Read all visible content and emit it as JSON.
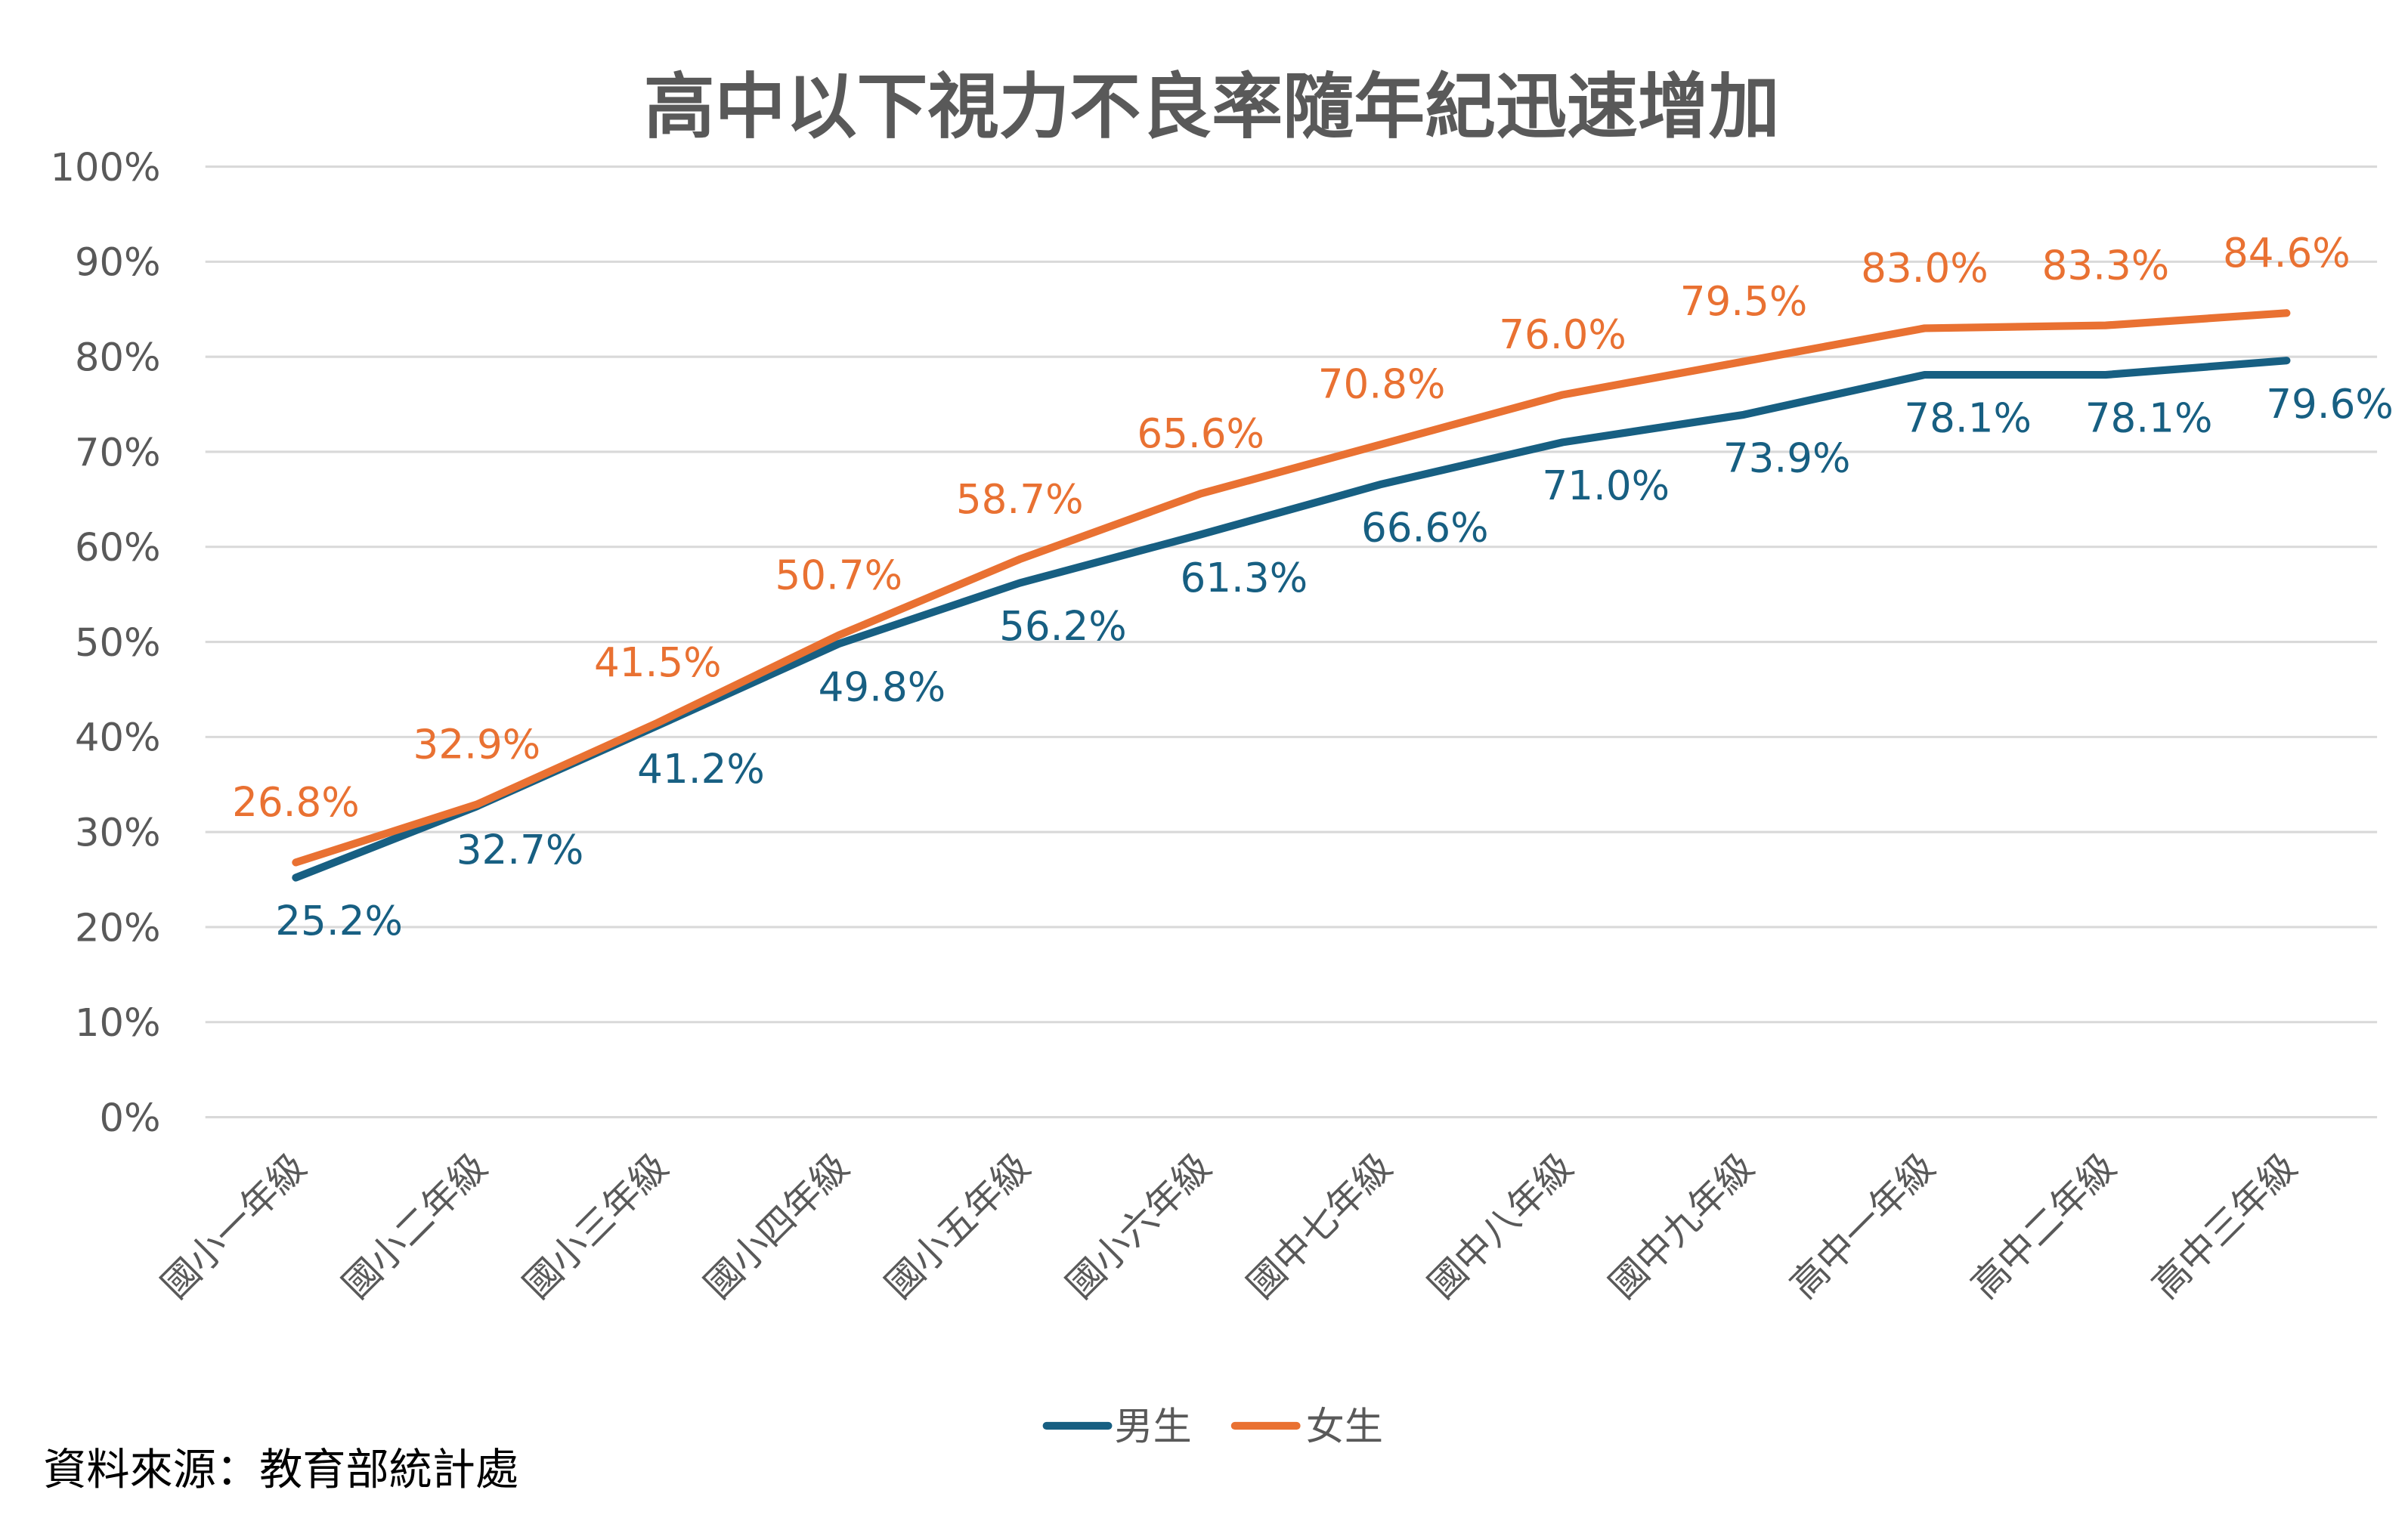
{
  "chart_data": {
    "type": "line",
    "title": "高中以下視力不良率隨年紀迅速增加",
    "categories": [
      "國小一年級",
      "國小二年級",
      "國小三年級",
      "國小四年級",
      "國小五年級",
      "國小六年級",
      "國中七年級",
      "國中八年級",
      "國中九年級",
      "高中一年級",
      "高中二年級",
      "高中三年級"
    ],
    "series": [
      {
        "name": "男生",
        "color": "#175f82",
        "values": [
          25.2,
          32.7,
          41.2,
          49.8,
          56.2,
          61.3,
          66.6,
          71.0,
          73.9,
          78.1,
          78.1,
          79.6
        ],
        "labels": [
          "25.2%",
          "32.7%",
          "41.2%",
          "49.8%",
          "56.2%",
          "61.3%",
          "66.6%",
          "71.0%",
          "73.9%",
          "78.1%",
          "78.1%",
          "79.6%"
        ]
      },
      {
        "name": "女生",
        "color": "#e97132",
        "values": [
          26.8,
          32.9,
          41.5,
          50.7,
          58.7,
          65.6,
          70.8,
          76.0,
          79.5,
          83.0,
          83.3,
          84.6
        ],
        "labels": [
          "26.8%",
          "32.9%",
          "41.5%",
          "50.7%",
          "58.7%",
          "65.6%",
          "70.8%",
          "76.0%",
          "79.5%",
          "83.0%",
          "83.3%",
          "84.6%"
        ]
      }
    ],
    "y_ticks": [
      "0%",
      "10%",
      "20%",
      "30%",
      "40%",
      "50%",
      "60%",
      "70%",
      "80%",
      "90%",
      "100%"
    ],
    "ylim": [
      0,
      100
    ],
    "grid": true,
    "legend_placement": "bottom",
    "source": "資料來源：教育部統計處"
  }
}
